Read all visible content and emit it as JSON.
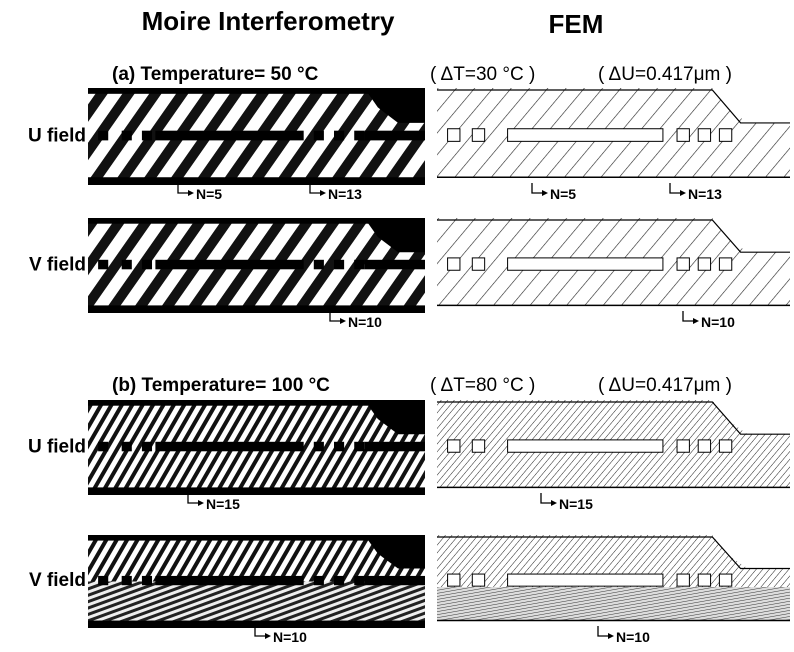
{
  "headers": {
    "left": "Moire Interferometry",
    "right": "FEM"
  },
  "sections": [
    {
      "title": "(a) Temperature= 50 °C",
      "delta_t": "( ΔT=30 °C )",
      "delta_u": "( ΔU=0.417μm )",
      "rows": [
        {
          "label": "U field",
          "moire_marks": [
            "N=5",
            "N=13"
          ],
          "fem_marks": [
            "N=5",
            "N=13"
          ]
        },
        {
          "label": "V field",
          "moire_marks": [
            "N=10"
          ],
          "fem_marks": [
            "N=10"
          ]
        }
      ]
    },
    {
      "title": "(b) Temperature= 100 °C",
      "delta_t": "( ΔT=80 °C )",
      "delta_u": "( ΔU=0.417μm )",
      "rows": [
        {
          "label": "U field",
          "moire_marks": [
            "N=15"
          ],
          "fem_marks": [
            "N=15"
          ]
        },
        {
          "label": "V field",
          "moire_marks": [
            "N=10"
          ],
          "fem_marks": [
            "N=10"
          ]
        }
      ]
    }
  ]
}
